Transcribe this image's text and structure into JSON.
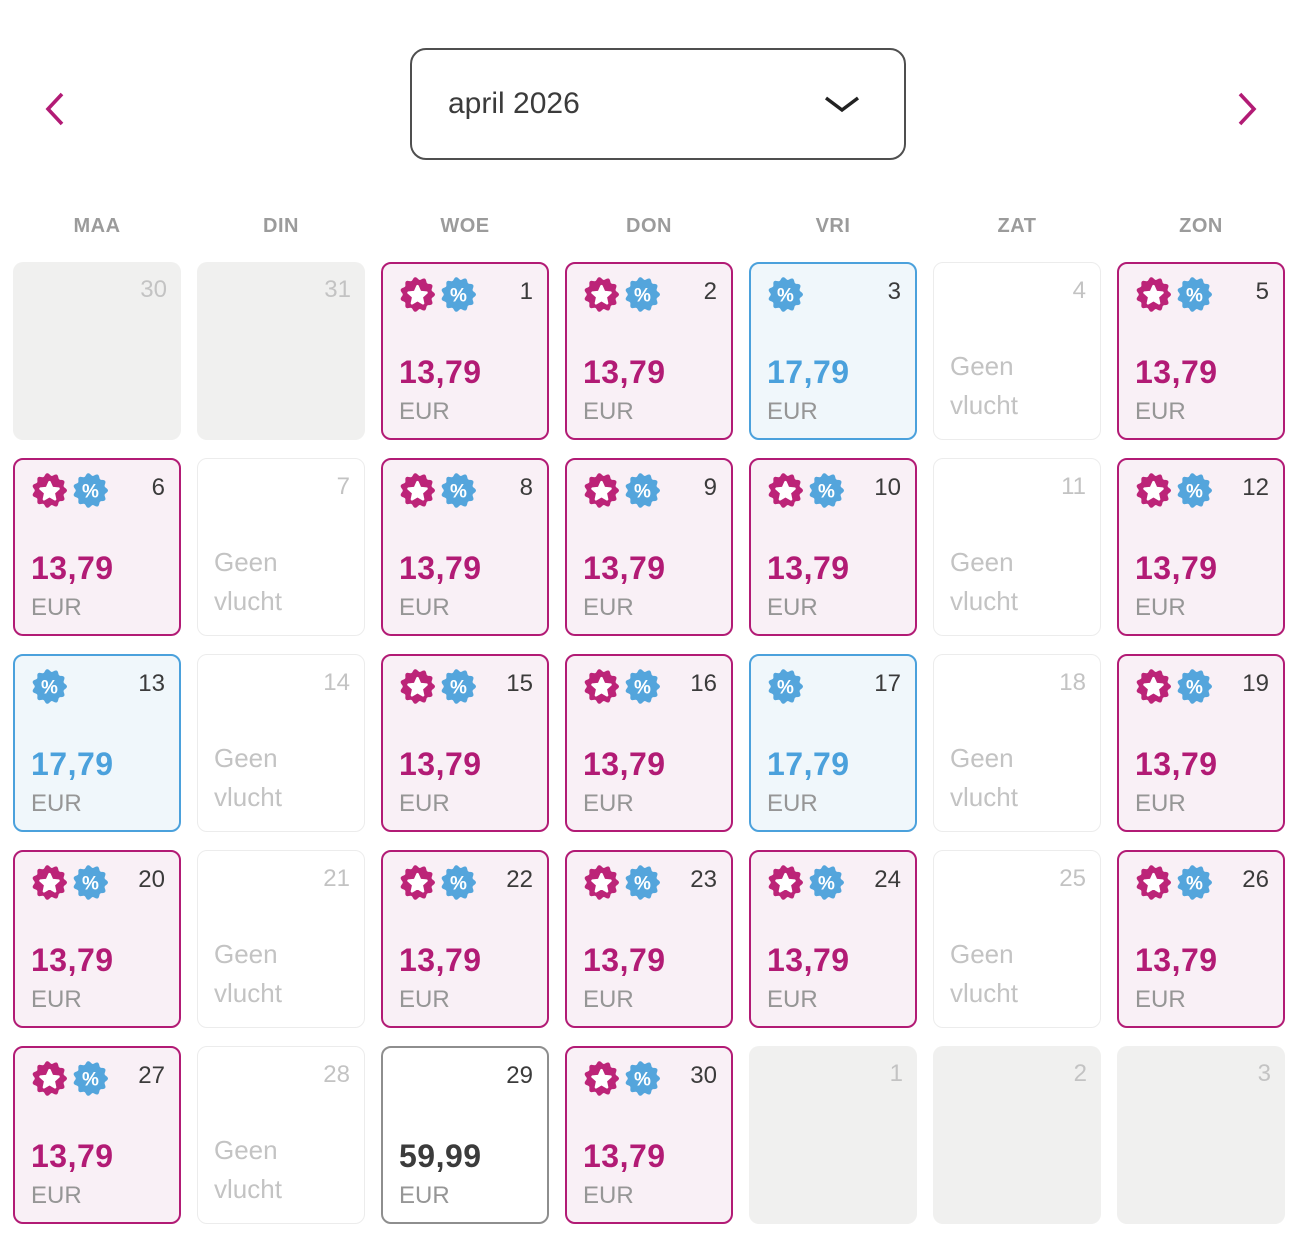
{
  "header": {
    "month_selector": {
      "label": "april 2026"
    },
    "previous_month_button": "previous month",
    "next_month_button": "next month"
  },
  "weekdays": [
    "MAA",
    "DIN",
    "WOE",
    "DON",
    "VRI",
    "ZAT",
    "ZON"
  ],
  "calendar": {
    "no_flight_label": "Geen vlucht",
    "currency": "EUR",
    "cells": [
      {
        "day": "30",
        "type": "outside"
      },
      {
        "day": "31",
        "type": "outside"
      },
      {
        "day": "1",
        "type": "deal",
        "price": "13,79",
        "badges": [
          "star",
          "percent"
        ]
      },
      {
        "day": "2",
        "type": "deal",
        "price": "13,79",
        "badges": [
          "star",
          "percent"
        ]
      },
      {
        "day": "3",
        "type": "discount",
        "price": "17,79",
        "badges": [
          "percent"
        ]
      },
      {
        "day": "4",
        "type": "no-flight"
      },
      {
        "day": "5",
        "type": "deal",
        "price": "13,79",
        "badges": [
          "star",
          "percent"
        ]
      },
      {
        "day": "6",
        "type": "deal",
        "price": "13,79",
        "badges": [
          "star",
          "percent"
        ]
      },
      {
        "day": "7",
        "type": "no-flight"
      },
      {
        "day": "8",
        "type": "deal",
        "price": "13,79",
        "badges": [
          "star",
          "percent"
        ]
      },
      {
        "day": "9",
        "type": "deal",
        "price": "13,79",
        "badges": [
          "star",
          "percent"
        ]
      },
      {
        "day": "10",
        "type": "deal",
        "price": "13,79",
        "badges": [
          "star",
          "percent"
        ]
      },
      {
        "day": "11",
        "type": "no-flight"
      },
      {
        "day": "12",
        "type": "deal",
        "price": "13,79",
        "badges": [
          "star",
          "percent"
        ]
      },
      {
        "day": "13",
        "type": "discount",
        "price": "17,79",
        "badges": [
          "percent"
        ]
      },
      {
        "day": "14",
        "type": "no-flight"
      },
      {
        "day": "15",
        "type": "deal",
        "price": "13,79",
        "badges": [
          "star",
          "percent"
        ]
      },
      {
        "day": "16",
        "type": "deal",
        "price": "13,79",
        "badges": [
          "star",
          "percent"
        ]
      },
      {
        "day": "17",
        "type": "discount",
        "price": "17,79",
        "badges": [
          "percent"
        ]
      },
      {
        "day": "18",
        "type": "no-flight"
      },
      {
        "day": "19",
        "type": "deal",
        "price": "13,79",
        "badges": [
          "star",
          "percent"
        ]
      },
      {
        "day": "20",
        "type": "deal",
        "price": "13,79",
        "badges": [
          "star",
          "percent"
        ]
      },
      {
        "day": "21",
        "type": "no-flight"
      },
      {
        "day": "22",
        "type": "deal",
        "price": "13,79",
        "badges": [
          "star",
          "percent"
        ]
      },
      {
        "day": "23",
        "type": "deal",
        "price": "13,79",
        "badges": [
          "star",
          "percent"
        ]
      },
      {
        "day": "24",
        "type": "deal",
        "price": "13,79",
        "badges": [
          "star",
          "percent"
        ]
      },
      {
        "day": "25",
        "type": "no-flight"
      },
      {
        "day": "26",
        "type": "deal",
        "price": "13,79",
        "badges": [
          "star",
          "percent"
        ]
      },
      {
        "day": "27",
        "type": "deal",
        "price": "13,79",
        "badges": [
          "star",
          "percent"
        ]
      },
      {
        "day": "28",
        "type": "no-flight"
      },
      {
        "day": "29",
        "type": "standard",
        "price": "59,99",
        "badges": []
      },
      {
        "day": "30",
        "type": "deal",
        "price": "13,79",
        "badges": [
          "star",
          "percent"
        ]
      },
      {
        "day": "1",
        "type": "outside"
      },
      {
        "day": "2",
        "type": "outside"
      },
      {
        "day": "3",
        "type": "outside"
      }
    ]
  },
  "icons": {
    "star": "star-badge-icon",
    "percent": "percent-badge-icon",
    "prev": "chevron-left-icon",
    "next": "chevron-right-icon",
    "dropdown": "chevron-down-icon"
  },
  "colors": {
    "accent_magenta": "#b21b75",
    "accent_magenta_badge": "#bc2478",
    "accent_blue": "#4ba1dc",
    "accent_blue_badge": "#54a5dc",
    "deal_bg": "#f9f0f6",
    "discount_bg": "#f0f7fb",
    "outside_bg": "#f0f0ef",
    "no_flight_border": "#ececec",
    "standard_border": "#8e8e8e",
    "dropdown_border": "#4f4f4f",
    "text_dark": "#3b3b3b",
    "text_gray": "#969696",
    "text_light": "#c3c3c3",
    "weekday_gray": "#9b9b9b"
  }
}
